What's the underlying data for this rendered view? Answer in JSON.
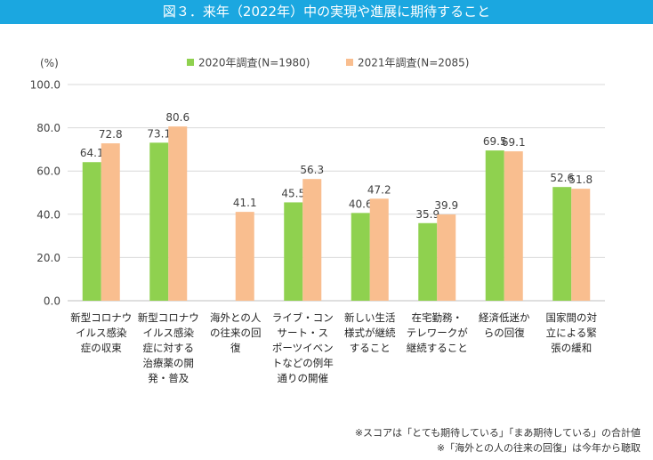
{
  "header": {
    "title": "図３．来年（2022年）中の実現や進展に期待すること"
  },
  "chart_data": {
    "type": "bar",
    "unit_label": "(%)",
    "ylim": [
      0,
      100
    ],
    "yticks": [
      "0.0",
      "20.0",
      "40.0",
      "60.0",
      "80.0",
      "100.0"
    ],
    "grid": true,
    "legend_position": "top",
    "categories": [
      [
        "新型コロナウ",
        "イルス感染",
        "症の収束"
      ],
      [
        "新型コロナウ",
        "イルス感染",
        "症に対する",
        "治療薬の開",
        "発・普及"
      ],
      [
        "海外との人",
        "の往来の回",
        "復"
      ],
      [
        "ライブ・コン",
        "サート・ス",
        "ポーツイベン",
        "トなどの例年",
        "通りの開催"
      ],
      [
        "新しい生活",
        "様式が継続",
        "すること"
      ],
      [
        "在宅勤務・",
        "テレワークが",
        "継続すること"
      ],
      [
        "経済低迷か",
        "らの回復"
      ],
      [
        "国家間の対",
        "立による緊",
        "張の緩和"
      ]
    ],
    "series": [
      {
        "name": "2020年調査(N=1980)",
        "color": "#8fd14f",
        "values": [
          64.1,
          73.1,
          null,
          45.5,
          40.6,
          35.9,
          69.5,
          52.6
        ],
        "labels": [
          "64.1",
          "73.1",
          "",
          "45.5",
          "40.6",
          "35.9",
          "69.5",
          "52.6"
        ]
      },
      {
        "name": "2021年調査(N=2085)",
        "color": "#f9be8f",
        "values": [
          72.8,
          80.6,
          41.1,
          56.3,
          47.2,
          39.9,
          69.1,
          51.8
        ],
        "labels": [
          "72.8",
          "80.6",
          "41.1",
          "56.3",
          "47.2",
          "39.9",
          "69.1",
          "51.8"
        ]
      }
    ]
  },
  "notes": [
    "※スコアは「とても期待している」「まあ期待している」の合計値",
    "※「海外との人の往来の回復」は今年から聴取"
  ]
}
